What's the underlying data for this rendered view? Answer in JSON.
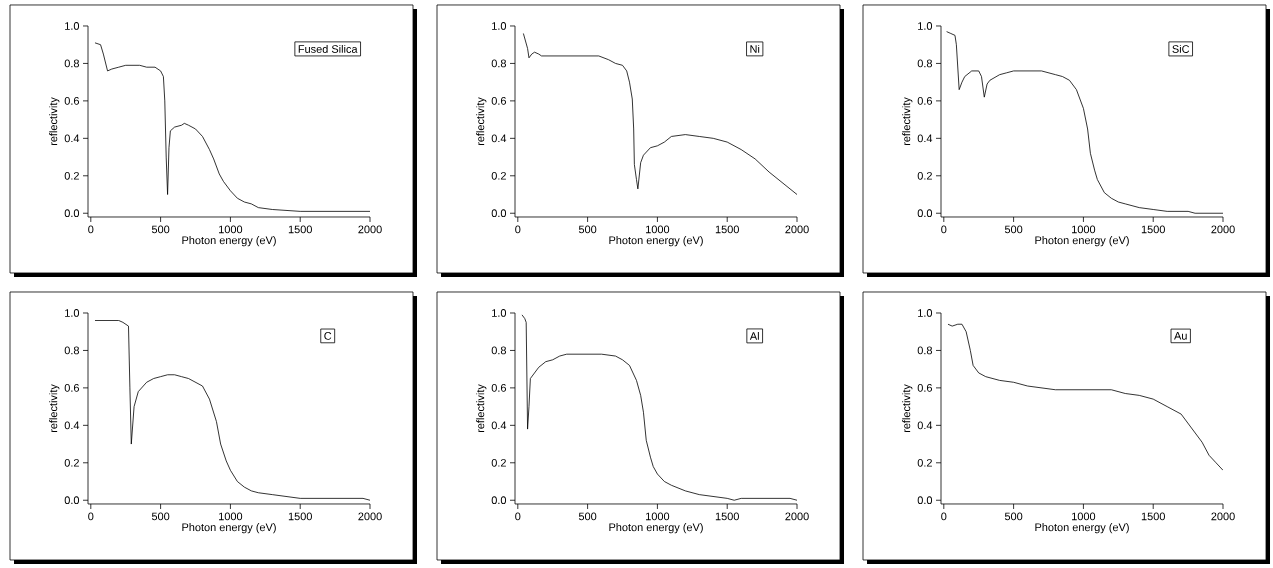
{
  "chart_data": [
    {
      "type": "line",
      "xlabel": "Photon energy (eV)",
      "ylabel": "reflectivity",
      "annotations": [
        "Fused Silica"
      ],
      "xlim": [
        -20,
        2000
      ],
      "ylim": [
        -0.02,
        1.0
      ],
      "xticks": [
        0,
        500,
        1000,
        1500,
        2000
      ],
      "yticks": [
        {
          "value": 0,
          "label": "0.0"
        },
        {
          "value": 0.2,
          "label": "0.2"
        },
        {
          "value": 0.4,
          "label": "0.4"
        },
        {
          "value": 0.6,
          "label": "0.6"
        },
        {
          "value": 0.8,
          "label": "0.8"
        },
        {
          "value": 1.0,
          "label": "1.0"
        }
      ],
      "series": [
        {
          "color": "#000000",
          "x": [
            30,
            70,
            90,
            120,
            150,
            200,
            250,
            350,
            400,
            460,
            500,
            520,
            530,
            540,
            550,
            560,
            570,
            600,
            650,
            670,
            700,
            750,
            800,
            850,
            880,
            920,
            950,
            1000,
            1050,
            1100,
            1150,
            1200,
            1300,
            1400,
            1500,
            2000
          ],
          "values": [
            0.91,
            0.9,
            0.85,
            0.76,
            0.77,
            0.78,
            0.79,
            0.79,
            0.78,
            0.78,
            0.76,
            0.73,
            0.6,
            0.3,
            0.1,
            0.35,
            0.44,
            0.46,
            0.47,
            0.48,
            0.47,
            0.45,
            0.41,
            0.34,
            0.29,
            0.21,
            0.17,
            0.12,
            0.08,
            0.06,
            0.05,
            0.03,
            0.02,
            0.015,
            0.01,
            0.01
          ]
        }
      ]
    },
    {
      "type": "line",
      "xlabel": "Photon energy (eV)",
      "ylabel": "reflectivity",
      "annotations": [
        "Ni"
      ],
      "xlim": [
        -20,
        2000
      ],
      "ylim": [
        -0.02,
        1.0
      ],
      "xticks": [
        0,
        500,
        1000,
        1500,
        2000
      ],
      "yticks": [
        {
          "value": 0,
          "label": "0.0"
        },
        {
          "value": 0.2,
          "label": "0.2"
        },
        {
          "value": 0.4,
          "label": "0.4"
        },
        {
          "value": 0.6,
          "label": "0.6"
        },
        {
          "value": 0.8,
          "label": "0.8"
        },
        {
          "value": 1.0,
          "label": "1.0"
        }
      ],
      "series": [
        {
          "color": "#000000",
          "x": [
            40,
            70,
            80,
            100,
            120,
            150,
            170,
            580,
            650,
            700,
            750,
            780,
            800,
            820,
            830,
            835,
            850,
            860,
            880,
            900,
            950,
            1000,
            1050,
            1100,
            1200,
            1300,
            1400,
            1500,
            1600,
            1700,
            1800,
            1900,
            2000
          ],
          "values": [
            0.96,
            0.88,
            0.83,
            0.85,
            0.86,
            0.85,
            0.84,
            0.84,
            0.82,
            0.8,
            0.79,
            0.76,
            0.7,
            0.61,
            0.45,
            0.26,
            0.18,
            0.13,
            0.27,
            0.31,
            0.35,
            0.36,
            0.38,
            0.41,
            0.42,
            0.41,
            0.4,
            0.38,
            0.34,
            0.29,
            0.22,
            0.16,
            0.1
          ]
        }
      ]
    },
    {
      "type": "line",
      "xlabel": "Photon energy (eV)",
      "ylabel": "reflectivity",
      "annotations": [
        "SiC"
      ],
      "xlim": [
        -20,
        2000
      ],
      "ylim": [
        -0.02,
        1.0
      ],
      "xticks": [
        0,
        500,
        1000,
        1500,
        2000
      ],
      "yticks": [
        {
          "value": 0,
          "label": "0.0"
        },
        {
          "value": 0.2,
          "label": "0.2"
        },
        {
          "value": 0.4,
          "label": "0.4"
        },
        {
          "value": 0.6,
          "label": "0.6"
        },
        {
          "value": 0.8,
          "label": "0.8"
        },
        {
          "value": 1.0,
          "label": "1.0"
        }
      ],
      "series": [
        {
          "color": "#000000",
          "x": [
            20,
            50,
            80,
            90,
            110,
            130,
            150,
            200,
            250,
            270,
            290,
            310,
            330,
            400,
            450,
            500,
            700,
            800,
            850,
            900,
            950,
            1000,
            1030,
            1050,
            1080,
            1100,
            1150,
            1200,
            1250,
            1300,
            1400,
            1500,
            1600,
            1750,
            1800,
            2000
          ],
          "values": [
            0.97,
            0.96,
            0.95,
            0.9,
            0.66,
            0.7,
            0.73,
            0.76,
            0.76,
            0.73,
            0.62,
            0.69,
            0.71,
            0.74,
            0.75,
            0.76,
            0.76,
            0.74,
            0.73,
            0.71,
            0.66,
            0.56,
            0.45,
            0.32,
            0.23,
            0.18,
            0.11,
            0.08,
            0.06,
            0.05,
            0.03,
            0.02,
            0.01,
            0.01,
            0.0,
            0.0
          ]
        }
      ]
    },
    {
      "type": "line",
      "xlabel": "Photon energy (eV)",
      "ylabel": "reflectivity",
      "annotations": [
        "C"
      ],
      "xlim": [
        -20,
        2000
      ],
      "ylim": [
        -0.02,
        1.0
      ],
      "xticks": [
        0,
        500,
        1000,
        1500,
        2000
      ],
      "yticks": [
        {
          "value": 0,
          "label": "0.0"
        },
        {
          "value": 0.2,
          "label": "0.2"
        },
        {
          "value": 0.4,
          "label": "0.4"
        },
        {
          "value": 0.6,
          "label": "0.6"
        },
        {
          "value": 0.8,
          "label": "0.8"
        },
        {
          "value": 1.0,
          "label": "1.0"
        }
      ],
      "series": [
        {
          "color": "#000000",
          "x": [
            30,
            200,
            230,
            270,
            280,
            290,
            310,
            340,
            400,
            450,
            500,
            550,
            600,
            650,
            700,
            750,
            800,
            850,
            900,
            930,
            970,
            1000,
            1050,
            1100,
            1150,
            1200,
            1300,
            1400,
            1500,
            1950,
            2000
          ],
          "values": [
            0.96,
            0.96,
            0.95,
            0.93,
            0.6,
            0.3,
            0.5,
            0.58,
            0.63,
            0.65,
            0.66,
            0.67,
            0.67,
            0.66,
            0.65,
            0.63,
            0.61,
            0.54,
            0.42,
            0.3,
            0.21,
            0.16,
            0.1,
            0.07,
            0.05,
            0.04,
            0.03,
            0.02,
            0.01,
            0.01,
            0.0
          ]
        }
      ]
    },
    {
      "type": "line",
      "xlabel": "Photon energy (eV)",
      "ylabel": "reflectivity",
      "annotations": [
        "Al"
      ],
      "xlim": [
        -20,
        2000
      ],
      "ylim": [
        -0.02,
        1.0
      ],
      "xticks": [
        0,
        500,
        1000,
        1500,
        2000
      ],
      "yticks": [
        {
          "value": 0,
          "label": "0.0"
        },
        {
          "value": 0.2,
          "label": "0.2"
        },
        {
          "value": 0.4,
          "label": "0.4"
        },
        {
          "value": 0.6,
          "label": "0.6"
        },
        {
          "value": 0.8,
          "label": "0.8"
        },
        {
          "value": 1.0,
          "label": "1.0"
        }
      ],
      "series": [
        {
          "color": "#000000",
          "x": [
            30,
            50,
            60,
            70,
            80,
            90,
            120,
            150,
            200,
            250,
            300,
            350,
            600,
            700,
            750,
            800,
            850,
            880,
            900,
            920,
            950,
            970,
            1000,
            1050,
            1100,
            1200,
            1300,
            1400,
            1500,
            1550,
            1600,
            1950,
            2000
          ],
          "values": [
            0.99,
            0.97,
            0.95,
            0.38,
            0.5,
            0.65,
            0.68,
            0.71,
            0.74,
            0.75,
            0.77,
            0.78,
            0.78,
            0.77,
            0.75,
            0.72,
            0.64,
            0.56,
            0.47,
            0.32,
            0.23,
            0.18,
            0.14,
            0.1,
            0.08,
            0.05,
            0.03,
            0.02,
            0.01,
            0.0,
            0.01,
            0.01,
            0.0
          ]
        }
      ]
    },
    {
      "type": "line",
      "xlabel": "Photon energy (eV)",
      "ylabel": "reflectivity",
      "annotations": [
        "Au"
      ],
      "xlim": [
        -20,
        2000
      ],
      "ylim": [
        -0.02,
        1.0
      ],
      "xticks": [
        0,
        500,
        1000,
        1500,
        2000
      ],
      "yticks": [
        {
          "value": 0,
          "label": "0.0"
        },
        {
          "value": 0.2,
          "label": "0.2"
        },
        {
          "value": 0.4,
          "label": "0.4"
        },
        {
          "value": 0.6,
          "label": "0.6"
        },
        {
          "value": 0.8,
          "label": "0.8"
        },
        {
          "value": 1.0,
          "label": "1.0"
        }
      ],
      "series": [
        {
          "color": "#000000",
          "x": [
            30,
            60,
            100,
            130,
            160,
            190,
            210,
            250,
            300,
            400,
            500,
            600,
            700,
            800,
            1000,
            1200,
            1300,
            1400,
            1500,
            1600,
            1700,
            1750,
            1800,
            1850,
            1900,
            1950,
            2000
          ],
          "values": [
            0.94,
            0.93,
            0.94,
            0.94,
            0.9,
            0.8,
            0.72,
            0.68,
            0.66,
            0.64,
            0.63,
            0.61,
            0.6,
            0.59,
            0.59,
            0.59,
            0.57,
            0.56,
            0.54,
            0.5,
            0.46,
            0.41,
            0.36,
            0.31,
            0.24,
            0.2,
            0.16
          ]
        }
      ]
    }
  ]
}
